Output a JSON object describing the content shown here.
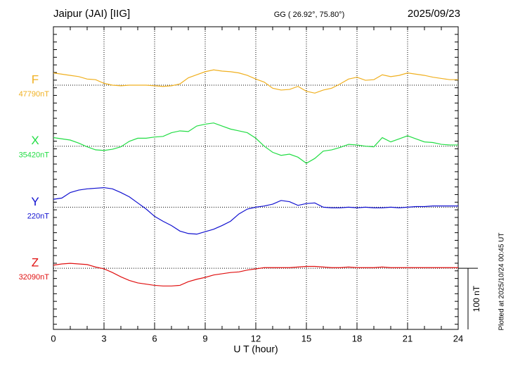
{
  "chart_data": {
    "type": "line",
    "title": "Jaipur (JAI)  [IIG]",
    "subtitle": "GG ( 26.92°,  75.80°)",
    "date": "2025/09/23",
    "x_label": "U T (hour)",
    "footnote": "Plotted at 2025/10/24 00:45 UT",
    "scale_bar": {
      "value": 100,
      "label": "100 nT"
    },
    "xlim": [
      0,
      24
    ],
    "xticks": [
      0,
      3,
      6,
      9,
      12,
      15,
      18,
      21,
      24
    ],
    "grid": true,
    "x": [
      0,
      0.5,
      1,
      1.5,
      2,
      2.5,
      3,
      3.5,
      4,
      4.5,
      5,
      5.5,
      6,
      6.5,
      7,
      7.5,
      8,
      8.5,
      9,
      9.5,
      10,
      10.5,
      11,
      11.5,
      12,
      12.5,
      13,
      13.5,
      14,
      14.5,
      15,
      15.5,
      16,
      16.5,
      17,
      17.5,
      18,
      18.5,
      19,
      19.5,
      20,
      20.5,
      21,
      21.5,
      22,
      22.5,
      23,
      23.5,
      24
    ],
    "series": [
      {
        "name": "F",
        "color": "#f0b020",
        "baseline": {
          "value": 47790,
          "label": "47790nT"
        },
        "values": [
          47810,
          47808,
          47806,
          47804,
          47800,
          47799,
          47793,
          47790,
          47789,
          47790,
          47790,
          47790,
          47789,
          47788,
          47789,
          47792,
          47802,
          47807,
          47812,
          47815,
          47813,
          47812,
          47810,
          47806,
          47800,
          47795,
          47785,
          47782,
          47783,
          47788,
          47780,
          47777,
          47782,
          47785,
          47792,
          47800,
          47803,
          47798,
          47799,
          47807,
          47804,
          47806,
          47810,
          47808,
          47806,
          47803,
          47801,
          47799,
          47799
        ]
      },
      {
        "name": "X",
        "color": "#22dd44",
        "baseline": {
          "value": 35420,
          "label": "35420nT"
        },
        "values": [
          35434,
          35432,
          35430,
          35425,
          35419,
          35414,
          35413,
          35415,
          35419,
          35428,
          35433,
          35433,
          35435,
          35436,
          35442,
          35445,
          35444,
          35453,
          35456,
          35458,
          35453,
          35448,
          35445,
          35442,
          35433,
          35420,
          35410,
          35405,
          35407,
          35402,
          35392,
          35400,
          35412,
          35414,
          35418,
          35423,
          35422,
          35420,
          35419,
          35434,
          35427,
          35432,
          35437,
          35432,
          35427,
          35426,
          35423,
          35422,
          35422
        ]
      },
      {
        "name": "Y",
        "color": "#1010d0",
        "baseline": {
          "value": 220,
          "label": "220nT"
        },
        "values": [
          233,
          235,
          244,
          248,
          250,
          251,
          252,
          250,
          244,
          237,
          227,
          217,
          205,
          197,
          190,
          181,
          177,
          176,
          180,
          184,
          190,
          197,
          209,
          217,
          220,
          222,
          225,
          231,
          229,
          223,
          226,
          227,
          220,
          219,
          219,
          220,
          219,
          220,
          219,
          219,
          220,
          219,
          220,
          221,
          221,
          222,
          222,
          222,
          222
        ]
      },
      {
        "name": "Z",
        "color": "#e01010",
        "baseline": {
          "value": 32090,
          "label": "32090nT"
        },
        "values": [
          32095,
          32097,
          32098,
          32097,
          32096,
          32092,
          32089,
          32083,
          32076,
          32070,
          32066,
          32064,
          32062,
          32061,
          32061,
          32062,
          32068,
          32072,
          32075,
          32079,
          32081,
          32083,
          32084,
          32087,
          32089,
          32091,
          32091,
          32091,
          32091,
          32092,
          32093,
          32093,
          32092,
          32091,
          32091,
          32092,
          32091,
          32091,
          32091,
          32092,
          32091,
          32091,
          32091,
          32091,
          32091,
          32091,
          32091,
          32091,
          32091
        ]
      }
    ]
  }
}
